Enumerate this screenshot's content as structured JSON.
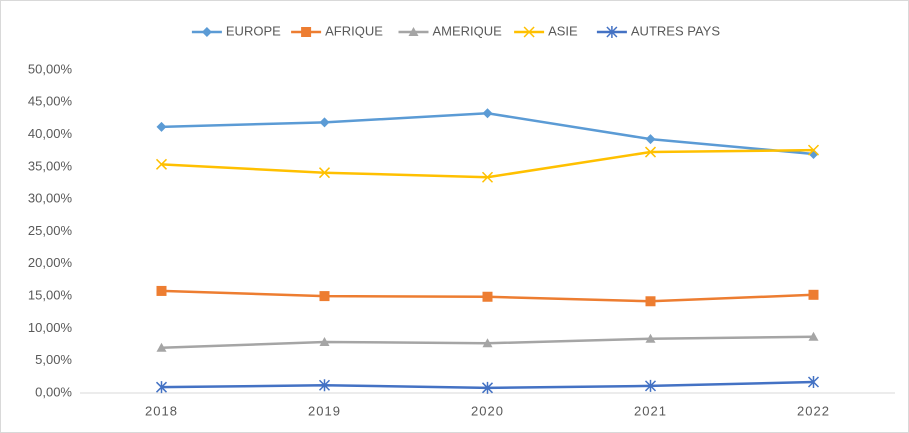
{
  "chart_data": {
    "type": "line",
    "categories": [
      "2018",
      "2019",
      "2020",
      "2021",
      "2022"
    ],
    "series": [
      {
        "name": "EUROPE",
        "color": "#5b9bd5",
        "marker": "diamond",
        "values": [
          41.2,
          41.9,
          43.3,
          39.3,
          37.0
        ]
      },
      {
        "name": "AFRIQUE",
        "color": "#ed7d31",
        "marker": "square",
        "values": [
          15.8,
          15.0,
          14.9,
          14.2,
          15.2
        ]
      },
      {
        "name": "AMERIQUE",
        "color": "#a5a5a5",
        "marker": "triangle",
        "values": [
          7.0,
          7.9,
          7.7,
          8.4,
          8.7
        ]
      },
      {
        "name": "ASIE",
        "color": "#ffc000",
        "marker": "x",
        "values": [
          35.4,
          34.1,
          33.4,
          37.3,
          37.6
        ]
      },
      {
        "name": "AUTRES PAYS",
        "color": "#4472c4",
        "marker": "asterisk",
        "values": [
          0.9,
          1.2,
          0.8,
          1.1,
          1.7
        ]
      }
    ],
    "ylim": [
      0,
      50
    ],
    "yticks": [
      {
        "value": 0,
        "label": "0,00%"
      },
      {
        "value": 5,
        "label": "5,00%"
      },
      {
        "value": 10,
        "label": "10,00%"
      },
      {
        "value": 15,
        "label": "15,00%"
      },
      {
        "value": 20,
        "label": "20,00%"
      },
      {
        "value": 25,
        "label": "25,00%"
      },
      {
        "value": 30,
        "label": "30,00%"
      },
      {
        "value": 35,
        "label": "35,00%"
      },
      {
        "value": 40,
        "label": "40,00%"
      },
      {
        "value": 45,
        "label": "45,00%"
      },
      {
        "value": 50,
        "label": "50,00%"
      }
    ],
    "grid": false,
    "legend": "top"
  }
}
